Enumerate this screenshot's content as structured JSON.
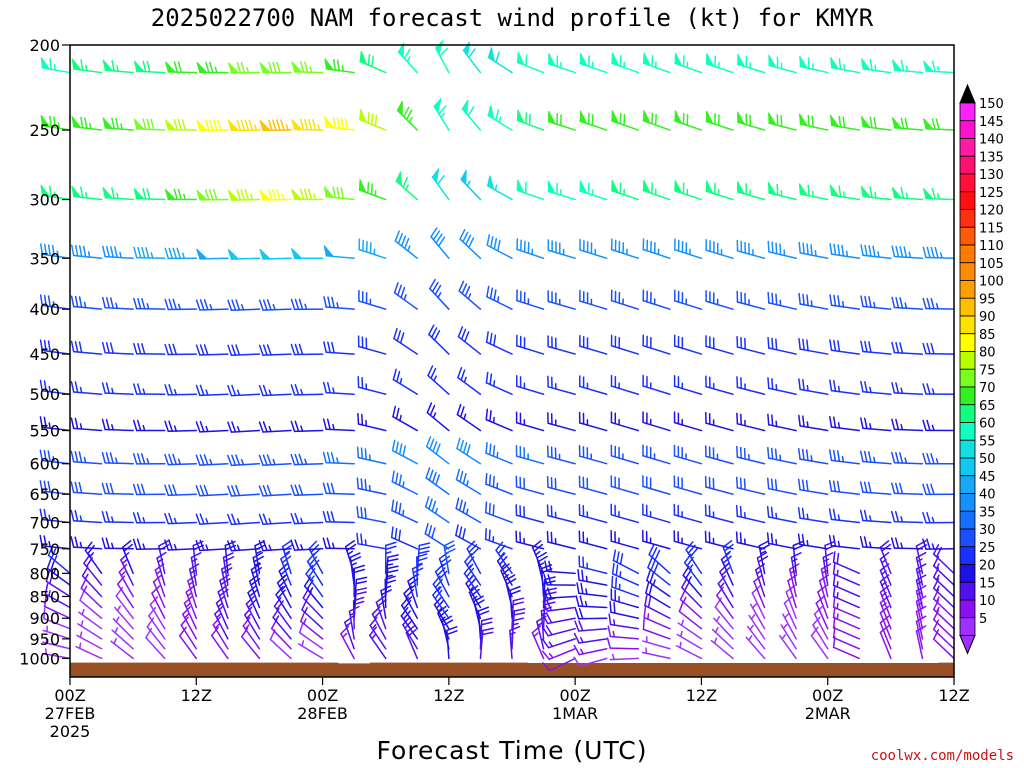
{
  "chart_data": {
    "type": "wind-barb-profile",
    "title": "2025022700 NAM forecast wind profile (kt) for KMYR",
    "xlabel": "Forecast Time (UTC)",
    "ylabel": "",
    "y_axis": {
      "scale": "log",
      "inverted": true,
      "range": [
        200,
        1050
      ],
      "ticks": [
        200,
        250,
        300,
        350,
        400,
        450,
        500,
        550,
        600,
        650,
        700,
        750,
        800,
        850,
        900,
        950,
        1000
      ]
    },
    "x_axis": {
      "range_hours": [
        0,
        84
      ],
      "ticks": [
        {
          "hour": 0,
          "lines": [
            "00Z",
            "27FEB",
            "2025"
          ]
        },
        {
          "hour": 12,
          "lines": [
            "12Z"
          ]
        },
        {
          "hour": 24,
          "lines": [
            "00Z",
            "28FEB"
          ]
        },
        {
          "hour": 36,
          "lines": [
            "12Z"
          ]
        },
        {
          "hour": 48,
          "lines": [
            "00Z",
            "1MAR"
          ]
        },
        {
          "hour": 60,
          "lines": [
            "12Z"
          ]
        },
        {
          "hour": 72,
          "lines": [
            "00Z",
            "2MAR"
          ]
        },
        {
          "hour": 84,
          "lines": [
            "12Z"
          ]
        }
      ]
    },
    "time_step_hours": 3,
    "levels_hpa": [
      1000,
      975,
      950,
      925,
      900,
      875,
      850,
      825,
      800,
      750,
      700,
      650,
      600,
      550,
      500,
      450,
      400,
      350,
      300,
      250,
      215
    ],
    "surface_pressure_hpa": [
      1011,
      1011,
      1011,
      1011,
      1011,
      1011,
      1011,
      1011,
      1011,
      1013,
      1011,
      1011,
      1011,
      1011,
      1011,
      1012,
      1012,
      1012,
      1012,
      1012,
      1012,
      1012,
      1012,
      1012,
      1012,
      1012,
      1012,
      1012,
      1011
    ],
    "colorbar": {
      "labels": [
        150,
        145,
        140,
        135,
        130,
        125,
        120,
        115,
        110,
        105,
        100,
        95,
        90,
        85,
        80,
        75,
        70,
        65,
        60,
        55,
        50,
        45,
        40,
        35,
        30,
        25,
        20,
        15,
        10,
        5
      ],
      "colors": [
        "#ff22ff",
        "#ff10d0",
        "#ff1aa8",
        "#ff0f70",
        "#ff0f3a",
        "#ff1010",
        "#ff3010",
        "#ff5a08",
        "#ff7a00",
        "#ff8c00",
        "#ffa000",
        "#ffc000",
        "#ffe000",
        "#ffff00",
        "#b8ff00",
        "#78ff20",
        "#34f020",
        "#10ff80",
        "#10ffc0",
        "#12e0e0",
        "#10c8f0",
        "#18a8f8",
        "#1690ff",
        "#1670ff",
        "#1a50ff",
        "#1a30ff",
        "#2010e8",
        "#5010f0",
        "#8a10f0",
        "#a030ff"
      ]
    },
    "fields": {
      "speed_kt": "generated-profile",
      "direction_deg": "generated-profile"
    },
    "ground_color": "#9a5025"
  },
  "credit": "coolwx.com/models"
}
